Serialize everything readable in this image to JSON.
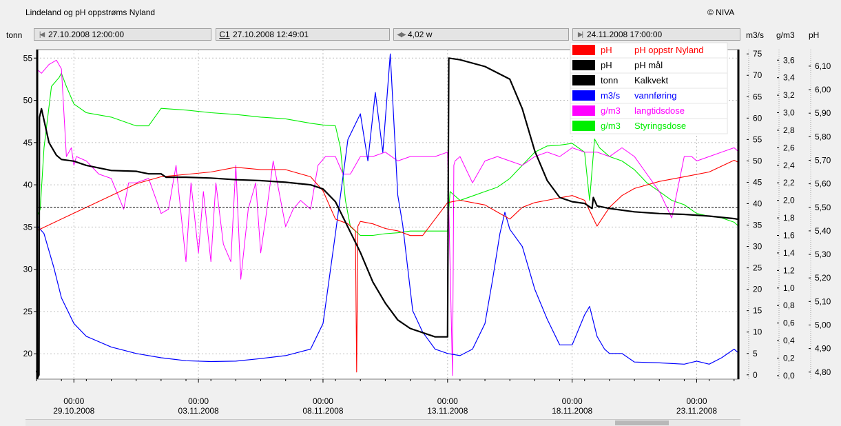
{
  "header": {
    "title": "Lindeland og pH oppstrøms Nyland",
    "copyright": "© NIVA"
  },
  "toolbar": {
    "start_time": "27.10.2008 12:00:00",
    "cursor_label": "C1",
    "cursor_time": "27.10.2008 12:49:01",
    "width": "4,02 w",
    "end_time": "24.11.2008 17:00:00"
  },
  "units": {
    "left": "tonn",
    "right1": "m3/s",
    "right2": "g/m3",
    "right3": "pH"
  },
  "colors": {
    "ph_red": "#ff0000",
    "ph_black": "#000000",
    "tonn": "#000000",
    "flow": "#0000ff",
    "long_dose": "#ff00ff",
    "control_dose": "#00ee00",
    "plot_bg": "#ffffff",
    "grid": "#c0c0c0"
  },
  "legend": [
    {
      "unit": "pH",
      "name": "pH oppstr Nyland",
      "color": "#ff0000",
      "text_color": "#ff0000"
    },
    {
      "unit": "pH",
      "name": "pH mål",
      "color": "#000000",
      "text_color": "#000000"
    },
    {
      "unit": "tonn",
      "name": "Kalkvekt",
      "color": "#000000",
      "text_color": "#000000"
    },
    {
      "unit": "m3/s",
      "name": "vannføring",
      "color": "#0000ff",
      "text_color": "#0000ff"
    },
    {
      "unit": "g/m3",
      "name": "langtidsdose",
      "color": "#ff00ff",
      "text_color": "#ff00ff"
    },
    {
      "unit": "g/m3",
      "name": "Styringsdose",
      "color": "#00ee00",
      "text_color": "#00ee00"
    }
  ],
  "chart_data": {
    "type": "line",
    "title": "Lindeland og pH oppstrøms Nyland",
    "x_range": [
      "27.10.2008 12:00",
      "24.11.2008 17:00"
    ],
    "x_ticks": [
      {
        "time": "00:00",
        "date": "29.10.2008",
        "day": 1.5
      },
      {
        "time": "00:00",
        "date": "03.11.2008",
        "day": 6.5
      },
      {
        "time": "00:00",
        "date": "08.11.2008",
        "day": 11.5
      },
      {
        "time": "00:00",
        "date": "13.11.2008",
        "day": 16.5
      },
      {
        "time": "00:00",
        "date": "18.11.2008",
        "day": 21.5
      },
      {
        "time": "00:00",
        "date": "23.11.2008",
        "day": 26.5
      }
    ],
    "axes": {
      "tonn": {
        "min": 17,
        "max": 56,
        "ticks": [
          "20",
          "25",
          "30",
          "35",
          "40",
          "45",
          "50",
          "55"
        ]
      },
      "m3s": {
        "min": -1,
        "max": 76,
        "ticks": [
          "0",
          "5",
          "10",
          "15",
          "20",
          "25",
          "30",
          "35",
          "40",
          "45",
          "50",
          "55",
          "60",
          "65",
          "70",
          "75"
        ]
      },
      "gm3": {
        "min": -0.04,
        "max": 3.72,
        "ticks": [
          "0,0",
          "0,2",
          "0,4",
          "0,6",
          "0,8",
          "1,0",
          "1,2",
          "1,4",
          "1,6",
          "1,8",
          "2,0",
          "2,2",
          "2,4",
          "2,6",
          "2,8",
          "3,0",
          "3,2",
          "3,4",
          "3,6"
        ]
      },
      "ph": {
        "min": 4.77,
        "max": 6.17,
        "ticks": [
          "4,80",
          "4,90",
          "5,00",
          "5,10",
          "5,20",
          "5,30",
          "5,40",
          "5,50",
          "5,60",
          "5,70",
          "5,80",
          "5,90",
          "6,00",
          "6,10"
        ]
      }
    },
    "grid": true,
    "legend_position": "top-right",
    "series": [
      {
        "name": "Kalkvekt",
        "unit": "tonn",
        "axis": "tonn",
        "color": "#000000",
        "width": 2.2,
        "x": [
          0,
          0.05,
          0.1,
          0.12,
          0.2,
          0.5,
          0.8,
          1.0,
          1.5,
          2.0,
          3.0,
          4.0,
          4.5,
          5.0,
          5.2,
          6.0,
          7.0,
          8.0,
          9.0,
          10.0,
          11.0,
          11.5,
          12.0,
          12.5,
          13.0,
          13.5,
          14.0,
          14.5,
          15.0,
          15.5,
          16.0,
          16.3,
          16.5,
          16.55,
          17.0,
          18.0,
          19.0,
          19.5,
          20.0,
          20.5,
          21.0,
          21.5,
          22.0,
          22.3,
          22.35,
          22.5,
          23.0,
          24.0,
          25.0,
          26.0,
          27.0,
          28.0,
          28.2
        ],
        "values": [
          18,
          17.2,
          17.5,
          48,
          49,
          45,
          43.5,
          43,
          42.8,
          42.3,
          41.7,
          41.6,
          41.3,
          41.3,
          40.9,
          40.9,
          40.8,
          40.6,
          40.5,
          40.3,
          40,
          39.5,
          38,
          35,
          32,
          28.5,
          26,
          24,
          23,
          22.5,
          22,
          22,
          22,
          55,
          54.8,
          54,
          52.5,
          49,
          44,
          40.5,
          38.5,
          38,
          37.8,
          37.2,
          38.5,
          37.5,
          37.2,
          36.8,
          36.6,
          36.5,
          36.3,
          36,
          35.9
        ]
      },
      {
        "name": "pH mål",
        "unit": "pH",
        "axis": "ph",
        "color": "#000000",
        "width": 1,
        "dashed": true,
        "x": [
          0,
          28.2
        ],
        "values": [
          5.5,
          5.5
        ]
      },
      {
        "name": "vannføring",
        "unit": "m3/s",
        "axis": "m3s",
        "color": "#0000ff",
        "width": 1.2,
        "x": [
          0,
          0.3,
          0.7,
          1.0,
          1.5,
          2.0,
          3.0,
          4.0,
          5.0,
          6.0,
          7.0,
          8.0,
          9.0,
          10.0,
          11.0,
          11.5,
          12.0,
          12.5,
          13.0,
          13.3,
          13.6,
          13.9,
          14.2,
          14.5,
          14.7,
          14.9,
          15.1,
          15.5,
          16.0,
          16.5,
          17.0,
          17.5,
          18.0,
          18.3,
          18.6,
          18.8,
          19.0,
          19.5,
          20.0,
          20.5,
          21.0,
          21.5,
          22.0,
          22.2,
          22.5,
          22.8,
          23.0,
          23.5,
          24.0,
          25.0,
          26.0,
          26.5,
          27.0,
          27.5,
          28.0,
          28.2
        ],
        "values": [
          35,
          33,
          25,
          18,
          12,
          9,
          6.5,
          5,
          4,
          3.3,
          3.1,
          3.2,
          3.8,
          4.5,
          6,
          12,
          33,
          55,
          61,
          50,
          66,
          52,
          75,
          42,
          35,
          25,
          15,
          10,
          6,
          5,
          4.5,
          6,
          12,
          22,
          33,
          38,
          34,
          30,
          20,
          13,
          7,
          7,
          14,
          16,
          9,
          6,
          5,
          5,
          3,
          2.8,
          2.5,
          3.2,
          2.5,
          4,
          6,
          5
        ]
      },
      {
        "name": "pH oppstr Nyland",
        "unit": "pH",
        "axis": "ph",
        "color": "#ff0000",
        "width": 1.1,
        "x": [
          0,
          1.0,
          2.0,
          3.0,
          4.0,
          5.0,
          6.0,
          7.0,
          8.0,
          9.0,
          10.0,
          11.0,
          11.5,
          12.0,
          12.5,
          12.8,
          12.85,
          12.9,
          13.0,
          13.5,
          14.0,
          14.5,
          15.0,
          15.5,
          16.0,
          16.5,
          17.0,
          17.5,
          18.0,
          18.5,
          19.0,
          19.5,
          20.0,
          20.5,
          21.0,
          21.5,
          22.0,
          22.5,
          23.0,
          23.5,
          24.0,
          25.0,
          26.0,
          27.0,
          28.0,
          28.2
        ],
        "values": [
          5.4,
          5.45,
          5.5,
          5.55,
          5.6,
          5.63,
          5.64,
          5.65,
          5.67,
          5.66,
          5.66,
          5.63,
          5.57,
          5.45,
          5.43,
          5.4,
          4.8,
          5.42,
          5.44,
          5.43,
          5.41,
          5.4,
          5.38,
          5.38,
          5.45,
          5.52,
          5.53,
          5.52,
          5.51,
          5.48,
          5.45,
          5.5,
          5.52,
          5.53,
          5.54,
          5.55,
          5.53,
          5.42,
          5.5,
          5.55,
          5.58,
          5.61,
          5.63,
          5.65,
          5.7,
          5.69
        ]
      },
      {
        "name": "langtidsdose",
        "unit": "g/m3",
        "axis": "gm3",
        "color": "#ff00ff",
        "width": 1,
        "x": [
          0,
          0.2,
          0.5,
          0.8,
          1.0,
          1.2,
          1.4,
          1.5,
          1.6,
          2.0,
          2.5,
          3.0,
          3.5,
          3.7,
          4.0,
          4.5,
          5.0,
          5.3,
          5.6,
          6.0,
          6.2,
          6.5,
          6.7,
          7.0,
          7.2,
          7.5,
          7.8,
          8.0,
          8.2,
          8.5,
          8.8,
          9.0,
          9.2,
          9.5,
          9.8,
          10.0,
          10.3,
          10.6,
          11.0,
          11.3,
          11.6,
          12.0,
          12.3,
          12.6,
          13.0,
          13.5,
          14.0,
          14.5,
          15.0,
          15.5,
          16.0,
          16.5,
          16.7,
          16.75,
          16.8,
          17.0,
          17.5,
          18.0,
          18.5,
          19.0,
          19.5,
          20.0,
          20.5,
          21.0,
          21.5,
          22.0,
          22.5,
          23.0,
          23.5,
          24.0,
          24.5,
          25.0,
          25.5,
          26.0,
          26.3,
          26.5,
          27.0,
          27.5,
          28.0,
          28.2
        ],
        "values": [
          3.5,
          3.45,
          3.55,
          3.6,
          3.5,
          2.5,
          2.6,
          2.4,
          2.5,
          2.45,
          2.3,
          2.25,
          1.9,
          2.2,
          2.2,
          2.25,
          1.85,
          1.9,
          2.4,
          1.3,
          2.2,
          1.4,
          2.1,
          1.3,
          2.2,
          1.5,
          1.3,
          2.4,
          1.1,
          1.9,
          2.2,
          1.4,
          1.8,
          2.45,
          2.0,
          1.7,
          1.9,
          2.0,
          1.9,
          2.4,
          2.5,
          2.5,
          2.3,
          2.3,
          2.5,
          2.5,
          2.55,
          2.45,
          2.5,
          2.5,
          2.5,
          2.55,
          0.0,
          2.4,
          2.45,
          2.5,
          2.2,
          2.45,
          2.5,
          2.45,
          2.4,
          2.5,
          2.55,
          2.5,
          2.6,
          2.55,
          2.55,
          2.5,
          2.6,
          2.5,
          2.3,
          2.1,
          1.8,
          2.5,
          2.5,
          2.45,
          2.5,
          2.55,
          2.6,
          2.55
        ]
      },
      {
        "name": "Styringsdose",
        "unit": "g/m3",
        "axis": "gm3",
        "color": "#00ee00",
        "width": 1.1,
        "x": [
          0,
          0.15,
          0.3,
          0.6,
          0.9,
          1.0,
          1.2,
          1.5,
          2.0,
          3.0,
          4.0,
          4.5,
          5.0,
          6.0,
          7.0,
          8.0,
          9.0,
          10.0,
          11.0,
          11.5,
          12.0,
          12.2,
          12.4,
          12.6,
          12.8,
          13.0,
          13.5,
          14.0,
          14.5,
          15.0,
          16.0,
          16.5,
          16.6,
          17.0,
          17.5,
          18.0,
          18.5,
          19.0,
          19.5,
          20.0,
          20.5,
          21.0,
          21.5,
          22.0,
          22.2,
          22.4,
          22.6,
          23.0,
          23.5,
          24.0,
          24.5,
          25.0,
          25.5,
          26.0,
          26.5,
          27.0,
          27.5,
          28.0,
          28.2
        ],
        "values": [
          1.8,
          1.9,
          2.6,
          3.3,
          3.4,
          3.45,
          3.3,
          3.1,
          3.0,
          2.95,
          2.85,
          2.85,
          3.05,
          3.03,
          3.0,
          2.98,
          2.95,
          2.93,
          2.88,
          2.86,
          2.85,
          2.6,
          2.0,
          1.7,
          1.65,
          1.6,
          1.6,
          1.62,
          1.63,
          1.65,
          1.65,
          1.65,
          2.1,
          2.0,
          2.05,
          2.1,
          2.15,
          2.25,
          2.4,
          2.55,
          2.62,
          2.63,
          2.65,
          2.55,
          2.0,
          2.7,
          2.6,
          2.5,
          2.45,
          2.35,
          2.2,
          2.1,
          2.0,
          1.95,
          1.85,
          1.82,
          1.8,
          1.75,
          1.7
        ]
      }
    ]
  }
}
